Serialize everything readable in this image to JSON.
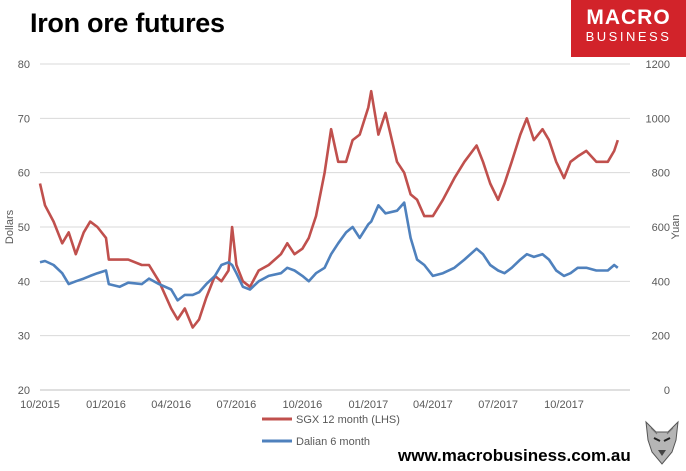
{
  "header": {
    "title": "Iron ore futures"
  },
  "logo": {
    "line1": "MACRO",
    "line2": "BUSINESS",
    "bg_color": "#d2232a"
  },
  "footer": {
    "url": "www.macrobusiness.com.au",
    "wolf_icon": "wolf-head-icon"
  },
  "chart_data": {
    "type": "line",
    "title": "Iron ore futures",
    "xlabel": "",
    "ylabel_left": "Dollars",
    "ylabel_right": "Yuan",
    "ylim_left": [
      20,
      80
    ],
    "ylim_right": [
      0,
      1200
    ],
    "yticks_left": [
      "20",
      "30",
      "40",
      "50",
      "60",
      "70",
      "80"
    ],
    "yticks_right": [
      "0",
      "200",
      "400",
      "600",
      "800",
      "1000",
      "1200"
    ],
    "xticks": [
      "10/2015",
      "01/2016",
      "04/2016",
      "07/2016",
      "10/2016",
      "01/2017",
      "04/2017",
      "07/2017",
      "10/2017"
    ],
    "grid": "horizontal",
    "legend_position": "bottom",
    "series": [
      {
        "name": "SGX 12 month (LHS)",
        "axis": "left",
        "color": "#c0504d",
        "points": [
          [
            "2015-10-01",
            58
          ],
          [
            "2015-10-08",
            54
          ],
          [
            "2015-10-20",
            51
          ],
          [
            "2015-11-01",
            47
          ],
          [
            "2015-11-10",
            49
          ],
          [
            "2015-11-20",
            45
          ],
          [
            "2015-12-01",
            49
          ],
          [
            "2015-12-10",
            51
          ],
          [
            "2015-12-20",
            50
          ],
          [
            "2016-01-01",
            48
          ],
          [
            "2016-01-05",
            44
          ],
          [
            "2016-01-20",
            44
          ],
          [
            "2016-02-01",
            44
          ],
          [
            "2016-02-20",
            43
          ],
          [
            "2016-03-01",
            43
          ],
          [
            "2016-03-15",
            40
          ],
          [
            "2016-04-01",
            35
          ],
          [
            "2016-04-10",
            33
          ],
          [
            "2016-04-20",
            35
          ],
          [
            "2016-05-01",
            31.5
          ],
          [
            "2016-05-10",
            33
          ],
          [
            "2016-05-20",
            37
          ],
          [
            "2016-06-01",
            41
          ],
          [
            "2016-06-10",
            40
          ],
          [
            "2016-06-20",
            42
          ],
          [
            "2016-06-25",
            50
          ],
          [
            "2016-07-01",
            43
          ],
          [
            "2016-07-10",
            40
          ],
          [
            "2016-07-20",
            39
          ],
          [
            "2016-08-01",
            42
          ],
          [
            "2016-08-15",
            43
          ],
          [
            "2016-09-01",
            45
          ],
          [
            "2016-09-10",
            47
          ],
          [
            "2016-09-20",
            45
          ],
          [
            "2016-10-01",
            46
          ],
          [
            "2016-10-10",
            48
          ],
          [
            "2016-10-20",
            52
          ],
          [
            "2016-11-01",
            60
          ],
          [
            "2016-11-10",
            68
          ],
          [
            "2016-11-20",
            62
          ],
          [
            "2016-12-01",
            62
          ],
          [
            "2016-12-10",
            66
          ],
          [
            "2016-12-20",
            67
          ],
          [
            "2017-01-01",
            72
          ],
          [
            "2017-01-05",
            75
          ],
          [
            "2017-01-15",
            67
          ],
          [
            "2017-01-25",
            71
          ],
          [
            "2017-02-10",
            62
          ],
          [
            "2017-02-20",
            60
          ],
          [
            "2017-03-01",
            56
          ],
          [
            "2017-03-10",
            55
          ],
          [
            "2017-03-20",
            52
          ],
          [
            "2017-04-01",
            52
          ],
          [
            "2017-04-15",
            55
          ],
          [
            "2017-05-01",
            59
          ],
          [
            "2017-05-15",
            62
          ],
          [
            "2017-06-01",
            65
          ],
          [
            "2017-06-10",
            62
          ],
          [
            "2017-06-20",
            58
          ],
          [
            "2017-07-01",
            55
          ],
          [
            "2017-07-10",
            58
          ],
          [
            "2017-07-20",
            62
          ],
          [
            "2017-08-01",
            67
          ],
          [
            "2017-08-10",
            70
          ],
          [
            "2017-08-20",
            66
          ],
          [
            "2017-09-01",
            68
          ],
          [
            "2017-09-10",
            66
          ],
          [
            "2017-09-20",
            62
          ],
          [
            "2017-10-01",
            59
          ],
          [
            "2017-10-10",
            62
          ],
          [
            "2017-10-20",
            63
          ],
          [
            "2017-11-01",
            64
          ],
          [
            "2017-11-15",
            62
          ],
          [
            "2017-12-01",
            62
          ],
          [
            "2017-12-10",
            64
          ],
          [
            "2017-12-15",
            66
          ]
        ]
      },
      {
        "name": "Dalian 6 month",
        "axis": "right",
        "color": "#4f81bd",
        "points": [
          [
            "2015-10-01",
            470
          ],
          [
            "2015-10-08",
            475
          ],
          [
            "2015-10-20",
            460
          ],
          [
            "2015-11-01",
            430
          ],
          [
            "2015-11-10",
            390
          ],
          [
            "2015-11-20",
            400
          ],
          [
            "2015-12-01",
            410
          ],
          [
            "2015-12-10",
            420
          ],
          [
            "2015-12-20",
            430
          ],
          [
            "2016-01-01",
            440
          ],
          [
            "2016-01-05",
            390
          ],
          [
            "2016-01-20",
            380
          ],
          [
            "2016-02-01",
            395
          ],
          [
            "2016-02-20",
            390
          ],
          [
            "2016-03-01",
            410
          ],
          [
            "2016-03-15",
            390
          ],
          [
            "2016-04-01",
            370
          ],
          [
            "2016-04-10",
            330
          ],
          [
            "2016-04-20",
            350
          ],
          [
            "2016-05-01",
            350
          ],
          [
            "2016-05-10",
            360
          ],
          [
            "2016-05-20",
            390
          ],
          [
            "2016-06-01",
            420
          ],
          [
            "2016-06-10",
            460
          ],
          [
            "2016-06-20",
            470
          ],
          [
            "2016-06-25",
            460
          ],
          [
            "2016-07-01",
            430
          ],
          [
            "2016-07-10",
            380
          ],
          [
            "2016-07-20",
            370
          ],
          [
            "2016-08-01",
            400
          ],
          [
            "2016-08-15",
            420
          ],
          [
            "2016-09-01",
            430
          ],
          [
            "2016-09-10",
            450
          ],
          [
            "2016-09-20",
            440
          ],
          [
            "2016-10-01",
            420
          ],
          [
            "2016-10-10",
            400
          ],
          [
            "2016-10-20",
            430
          ],
          [
            "2016-11-01",
            450
          ],
          [
            "2016-11-10",
            500
          ],
          [
            "2016-11-20",
            540
          ],
          [
            "2016-12-01",
            580
          ],
          [
            "2016-12-10",
            600
          ],
          [
            "2016-12-20",
            560
          ],
          [
            "2017-01-01",
            610
          ],
          [
            "2017-01-05",
            620
          ],
          [
            "2017-01-15",
            680
          ],
          [
            "2017-01-25",
            650
          ],
          [
            "2017-02-10",
            660
          ],
          [
            "2017-02-20",
            690
          ],
          [
            "2017-03-01",
            560
          ],
          [
            "2017-03-10",
            480
          ],
          [
            "2017-03-20",
            460
          ],
          [
            "2017-04-01",
            420
          ],
          [
            "2017-04-15",
            430
          ],
          [
            "2017-05-01",
            450
          ],
          [
            "2017-05-15",
            480
          ],
          [
            "2017-06-01",
            520
          ],
          [
            "2017-06-10",
            500
          ],
          [
            "2017-06-20",
            460
          ],
          [
            "2017-07-01",
            440
          ],
          [
            "2017-07-10",
            430
          ],
          [
            "2017-07-20",
            450
          ],
          [
            "2017-08-01",
            480
          ],
          [
            "2017-08-10",
            500
          ],
          [
            "2017-08-20",
            490
          ],
          [
            "2017-09-01",
            500
          ],
          [
            "2017-09-10",
            480
          ],
          [
            "2017-09-20",
            440
          ],
          [
            "2017-10-01",
            420
          ],
          [
            "2017-10-10",
            430
          ],
          [
            "2017-10-20",
            450
          ],
          [
            "2017-11-01",
            450
          ],
          [
            "2017-11-15",
            440
          ],
          [
            "2017-12-01",
            440
          ],
          [
            "2017-12-10",
            460
          ],
          [
            "2017-12-15",
            450
          ]
        ]
      }
    ]
  }
}
